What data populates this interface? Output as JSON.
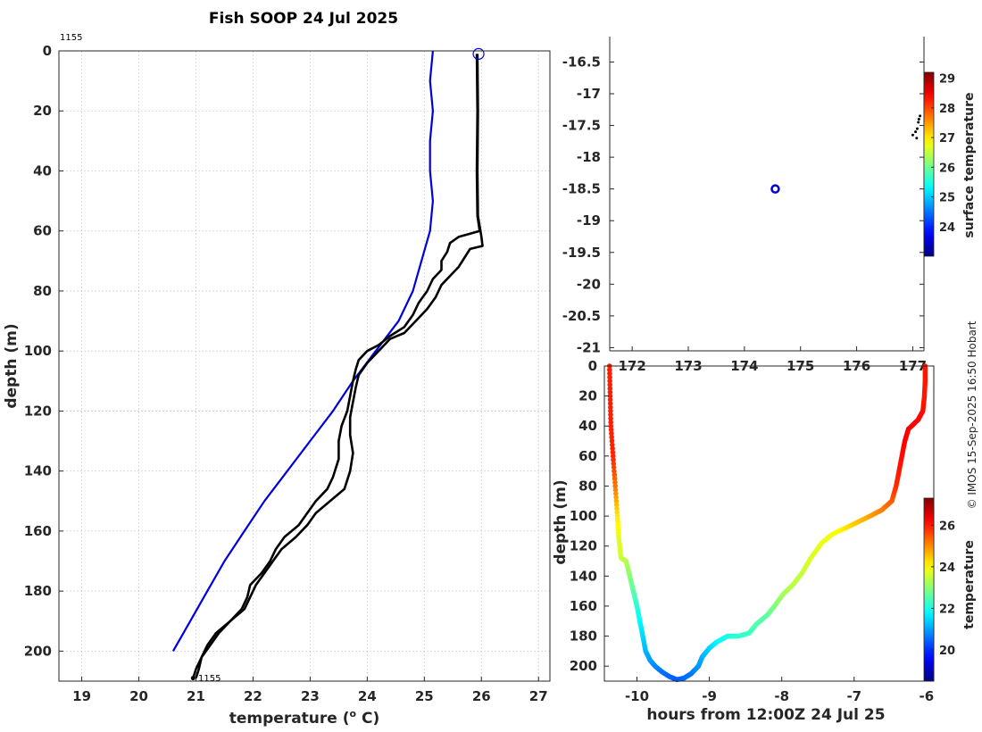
{
  "title": "Fish SOOP 24 Jul 2025",
  "credit": "© IMOS 15-Sep-2025 16:50 Hobart",
  "colors": {
    "profile_black": "#000000",
    "climatology_blue": "#0000dd",
    "marker_blue": "#0000dd"
  },
  "chart_data": [
    {
      "type": "line",
      "id": "profile",
      "xlabel": "temperature (",
      "xlabel_sup": "o",
      "xlabel_tail": " C)",
      "ylabel": "depth (m)",
      "xlim": [
        18.6,
        27.2
      ],
      "ylim": [
        0,
        210
      ],
      "y_reversed": true,
      "xticks": [
        19,
        20,
        21,
        22,
        23,
        24,
        25,
        26,
        27
      ],
      "yticks": [
        0,
        20,
        40,
        60,
        80,
        100,
        120,
        140,
        160,
        180,
        200
      ],
      "annotation_top": "1155",
      "annotation_bottom": "1155",
      "marker_top": {
        "x": 25.95,
        "y": 1
      },
      "marker_bottom": {
        "x": 20.95,
        "y": 209
      },
      "series": [
        {
          "name": "climatology",
          "color": "#0000dd",
          "points": [
            [
              25.15,
              0
            ],
            [
              25.1,
              10
            ],
            [
              25.15,
              20
            ],
            [
              25.1,
              30
            ],
            [
              25.1,
              40
            ],
            [
              25.15,
              50
            ],
            [
              25.1,
              60
            ],
            [
              24.95,
              70
            ],
            [
              24.8,
              80
            ],
            [
              24.55,
              90
            ],
            [
              24.15,
              100
            ],
            [
              23.75,
              110
            ],
            [
              23.4,
              120
            ],
            [
              23.0,
              130
            ],
            [
              22.6,
              140
            ],
            [
              22.2,
              150
            ],
            [
              21.85,
              160
            ],
            [
              21.5,
              170
            ],
            [
              21.2,
              180
            ],
            [
              20.9,
              190
            ],
            [
              20.6,
              200
            ]
          ]
        },
        {
          "name": "profile-a",
          "color": "#000000",
          "points": [
            [
              25.92,
              1
            ],
            [
              25.93,
              20
            ],
            [
              25.92,
              40
            ],
            [
              25.93,
              55
            ],
            [
              25.97,
              60
            ],
            [
              25.6,
              62
            ],
            [
              25.45,
              64
            ],
            [
              25.4,
              67
            ],
            [
              25.3,
              70
            ],
            [
              25.3,
              73
            ],
            [
              25.15,
              76
            ],
            [
              25.05,
              80
            ],
            [
              24.9,
              84
            ],
            [
              24.8,
              88
            ],
            [
              24.65,
              92
            ],
            [
              24.4,
              95
            ],
            [
              24.2,
              98
            ],
            [
              24.0,
              100
            ],
            [
              23.85,
              103
            ],
            [
              23.8,
              106
            ],
            [
              23.75,
              110
            ],
            [
              23.7,
              115
            ],
            [
              23.65,
              120
            ],
            [
              23.55,
              125
            ],
            [
              23.5,
              130
            ],
            [
              23.5,
              136
            ],
            [
              23.4,
              142
            ],
            [
              23.3,
              146
            ],
            [
              23.1,
              150
            ],
            [
              22.95,
              154
            ],
            [
              22.8,
              158
            ],
            [
              22.55,
              162
            ],
            [
              22.4,
              166
            ],
            [
              22.3,
              170
            ],
            [
              22.15,
              174
            ],
            [
              21.95,
              178
            ],
            [
              21.9,
              182
            ],
            [
              21.8,
              186
            ],
            [
              21.6,
              190
            ],
            [
              21.4,
              194
            ],
            [
              21.25,
              198
            ],
            [
              21.1,
              202
            ],
            [
              21.0,
              206
            ],
            [
              20.95,
              209
            ]
          ]
        },
        {
          "name": "profile-b",
          "color": "#000000",
          "points": [
            [
              25.93,
              1
            ],
            [
              25.94,
              20
            ],
            [
              25.93,
              40
            ],
            [
              25.94,
              55
            ],
            [
              26.0,
              62
            ],
            [
              26.02,
              65
            ],
            [
              25.8,
              66
            ],
            [
              25.7,
              69
            ],
            [
              25.6,
              72
            ],
            [
              25.45,
              75
            ],
            [
              25.3,
              78
            ],
            [
              25.2,
              82
            ],
            [
              25.05,
              86
            ],
            [
              24.85,
              90
            ],
            [
              24.65,
              94
            ],
            [
              24.4,
              96
            ],
            [
              24.2,
              100
            ],
            [
              24.0,
              104
            ],
            [
              23.85,
              108
            ],
            [
              23.8,
              112
            ],
            [
              23.75,
              117
            ],
            [
              23.7,
              122
            ],
            [
              23.7,
              128
            ],
            [
              23.75,
              134
            ],
            [
              23.7,
              140
            ],
            [
              23.6,
              146
            ],
            [
              23.35,
              150
            ],
            [
              23.1,
              154
            ],
            [
              22.95,
              158
            ],
            [
              22.75,
              162
            ],
            [
              22.5,
              166
            ],
            [
              22.35,
              170
            ],
            [
              22.2,
              174
            ],
            [
              22.05,
              178
            ],
            [
              21.95,
              182
            ],
            [
              21.85,
              186
            ],
            [
              21.6,
              190
            ],
            [
              21.35,
              194
            ],
            [
              21.2,
              198
            ],
            [
              21.1,
              202
            ],
            [
              21.05,
              206
            ],
            [
              21.0,
              209
            ]
          ]
        }
      ]
    },
    {
      "type": "scatter",
      "id": "map",
      "xlim": [
        171.6,
        177.2
      ],
      "ylim": [
        -21.05,
        -16.1
      ],
      "xticks": [
        "172",
        "173",
        "174",
        "175",
        "176",
        "177"
      ],
      "xtick_values": [
        172,
        173,
        174,
        175,
        176,
        177
      ],
      "yticks": [
        -16.5,
        -17,
        -17.5,
        -18,
        -18.5,
        -19,
        -19.5,
        -20,
        -20.5,
        -21
      ],
      "marker": {
        "lon": 174.55,
        "lat": -18.5
      },
      "track_points": [
        [
          177.13,
          -17.35
        ],
        [
          177.1,
          -17.45
        ],
        [
          177.08,
          -17.55
        ],
        [
          177.05,
          -17.6
        ],
        [
          177.07,
          -17.7
        ],
        [
          177.0,
          -17.65
        ],
        [
          177.11,
          -17.4
        ]
      ],
      "colorbar": {
        "label": "surface temperature",
        "range": [
          23.0,
          29.2
        ],
        "ticks": [
          24,
          25,
          26,
          27,
          28,
          29
        ]
      }
    },
    {
      "type": "scatter",
      "id": "depth-time",
      "xlabel": "hours from 12:00Z 24 Jul 25",
      "ylabel": "depth (m)",
      "xlim": [
        -10.45,
        -5.9
      ],
      "ylim": [
        0,
        210
      ],
      "y_reversed": true,
      "xticks": [
        -10,
        -9,
        -8,
        -7,
        -6
      ],
      "yticks": [
        0,
        20,
        40,
        60,
        80,
        100,
        120,
        140,
        160,
        180,
        200
      ],
      "colorbar": {
        "label": "temperature",
        "range": [
          18.5,
          27.3
        ],
        "ticks": [
          20,
          22,
          24,
          26
        ]
      },
      "points": [
        [
          -10.38,
          0,
          25.95
        ],
        [
          -10.37,
          20,
          25.93
        ],
        [
          -10.36,
          40,
          25.93
        ],
        [
          -10.33,
          60,
          25.9
        ],
        [
          -10.3,
          80,
          25.2
        ],
        [
          -10.27,
          100,
          24.2
        ],
        [
          -10.25,
          115,
          23.75
        ],
        [
          -10.22,
          128,
          23.6
        ],
        [
          -10.15,
          130,
          23.4
        ],
        [
          -10.1,
          140,
          23.0
        ],
        [
          -10.05,
          150,
          22.6
        ],
        [
          -10.0,
          160,
          22.2
        ],
        [
          -9.96,
          170,
          21.8
        ],
        [
          -9.92,
          180,
          21.5
        ],
        [
          -9.88,
          190,
          21.2
        ],
        [
          -9.82,
          196,
          21.0
        ],
        [
          -9.75,
          200,
          20.8
        ],
        [
          -9.65,
          204,
          20.6
        ],
        [
          -9.55,
          207,
          20.5
        ],
        [
          -9.45,
          209,
          20.4
        ],
        [
          -9.35,
          208,
          20.5
        ],
        [
          -9.25,
          205,
          20.6
        ],
        [
          -9.15,
          200,
          20.9
        ],
        [
          -9.1,
          194,
          21.1
        ],
        [
          -9.0,
          188,
          21.4
        ],
        [
          -8.9,
          184,
          21.7
        ],
        [
          -8.75,
          180,
          22.0
        ],
        [
          -8.6,
          180,
          22.2
        ],
        [
          -8.45,
          178,
          22.3
        ],
        [
          -8.35,
          172,
          22.5
        ],
        [
          -8.2,
          166,
          22.6
        ],
        [
          -8.1,
          160,
          22.9
        ],
        [
          -7.98,
          152,
          23.2
        ],
        [
          -7.85,
          146,
          23.4
        ],
        [
          -7.72,
          138,
          23.5
        ],
        [
          -7.6,
          128,
          23.7
        ],
        [
          -7.45,
          118,
          23.8
        ],
        [
          -7.3,
          112,
          23.9
        ],
        [
          -7.12,
          108,
          24.2
        ],
        [
          -6.95,
          104,
          24.5
        ],
        [
          -6.78,
          100,
          24.8
        ],
        [
          -6.62,
          96,
          25.1
        ],
        [
          -6.48,
          90,
          25.4
        ],
        [
          -6.42,
          80,
          25.8
        ],
        [
          -6.38,
          70,
          26.0
        ],
        [
          -6.34,
          60,
          26.1
        ],
        [
          -6.3,
          50,
          26.2
        ],
        [
          -6.25,
          42,
          26.2
        ],
        [
          -6.12,
          36,
          26.2
        ],
        [
          -6.05,
          30,
          26.1
        ],
        [
          -6.03,
          20,
          26.0
        ],
        [
          -6.02,
          10,
          26.0
        ],
        [
          -6.02,
          0,
          26.0
        ]
      ]
    }
  ]
}
